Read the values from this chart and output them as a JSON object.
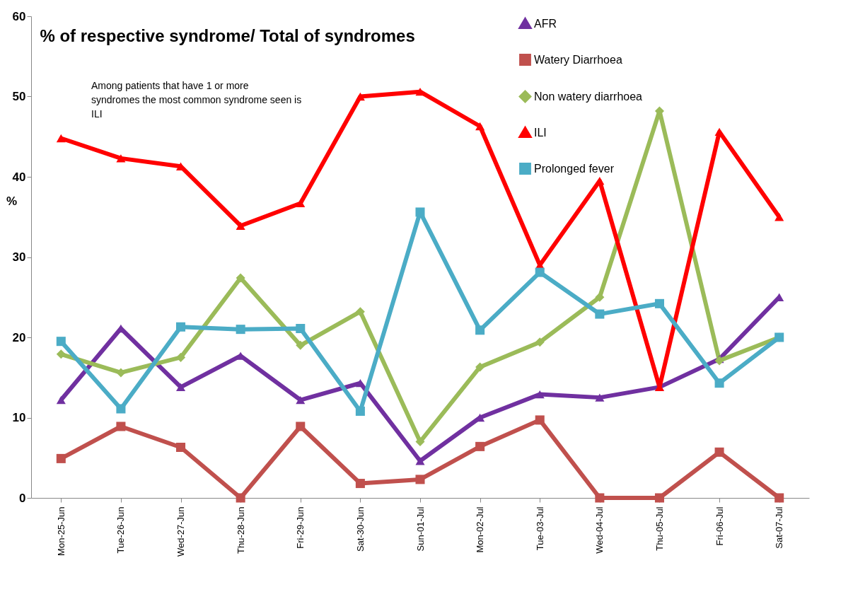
{
  "chart_data": {
    "type": "line",
    "title": "% of respective syndrome/ Total of syndromes",
    "ylabel": "%",
    "annotations": [
      "Among patients that have 1 or more syndromes the most common syndrome seen is ILI"
    ],
    "categories": [
      "Mon-25-Jun",
      "Tue-26-Jun",
      "Wed-27-Jun",
      "Thu-28-Jun",
      "Fri-29-Jun",
      "Sat-30-Jun",
      "Sun-01-Jul",
      "Mon-02-Jul",
      "Tue-03-Jul",
      "Wed-04-Jul",
      "Thu-05-Jul",
      "Fri-06-Jul",
      "Sat-07-Jul"
    ],
    "series": [
      {
        "name": "AFR",
        "color": "#7030a0",
        "marker": "triangle",
        "values": [
          12.2,
          21.1,
          13.8,
          17.7,
          12.2,
          14.3,
          4.6,
          10.0,
          12.9,
          12.5,
          13.8,
          17.3,
          25.0
        ]
      },
      {
        "name": "Watery Diarrhoea",
        "color": "#c0504d",
        "marker": "square",
        "values": [
          4.9,
          8.9,
          6.3,
          0,
          8.9,
          1.8,
          2.3,
          6.4,
          9.7,
          0,
          0,
          5.7,
          0
        ]
      },
      {
        "name": "Non watery diarrhoea",
        "color": "#9bbb59",
        "marker": "diamond",
        "values": [
          17.9,
          15.6,
          17.5,
          27.4,
          19.0,
          23.2,
          7.0,
          16.3,
          19.4,
          25.0,
          48.2,
          17.1,
          20.0
        ]
      },
      {
        "name": "ILI",
        "color": "#ff0000",
        "marker": "triangle",
        "values": [
          44.8,
          42.3,
          41.3,
          33.9,
          36.7,
          50.0,
          50.6,
          46.3,
          29.0,
          39.5,
          13.8,
          45.6,
          35.0
        ]
      },
      {
        "name": "Prolonged fever",
        "color": "#4bacc6",
        "marker": "square",
        "values": [
          19.5,
          11.1,
          21.3,
          21.0,
          21.1,
          10.8,
          35.6,
          20.9,
          28.1,
          22.9,
          24.2,
          14.3,
          20.0
        ]
      }
    ],
    "ylim": [
      0,
      60
    ],
    "yticks": [
      0,
      10,
      20,
      30,
      40,
      50,
      60
    ],
    "grid": false,
    "legend": "top right"
  }
}
